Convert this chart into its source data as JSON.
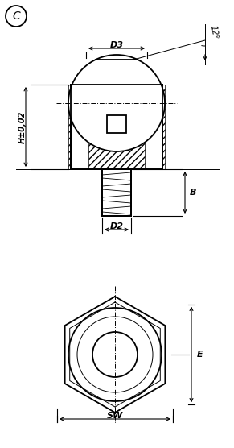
{
  "bg_color": "#ffffff",
  "line_color": "#000000",
  "title_label": "C",
  "labels": {
    "D3": "D3",
    "D2": "D2",
    "H": "H±0,02",
    "B": "B",
    "E": "E",
    "SW": "SW",
    "angle": "12°"
  },
  "figsize": [
    2.91,
    5.56
  ],
  "dpi": 100
}
